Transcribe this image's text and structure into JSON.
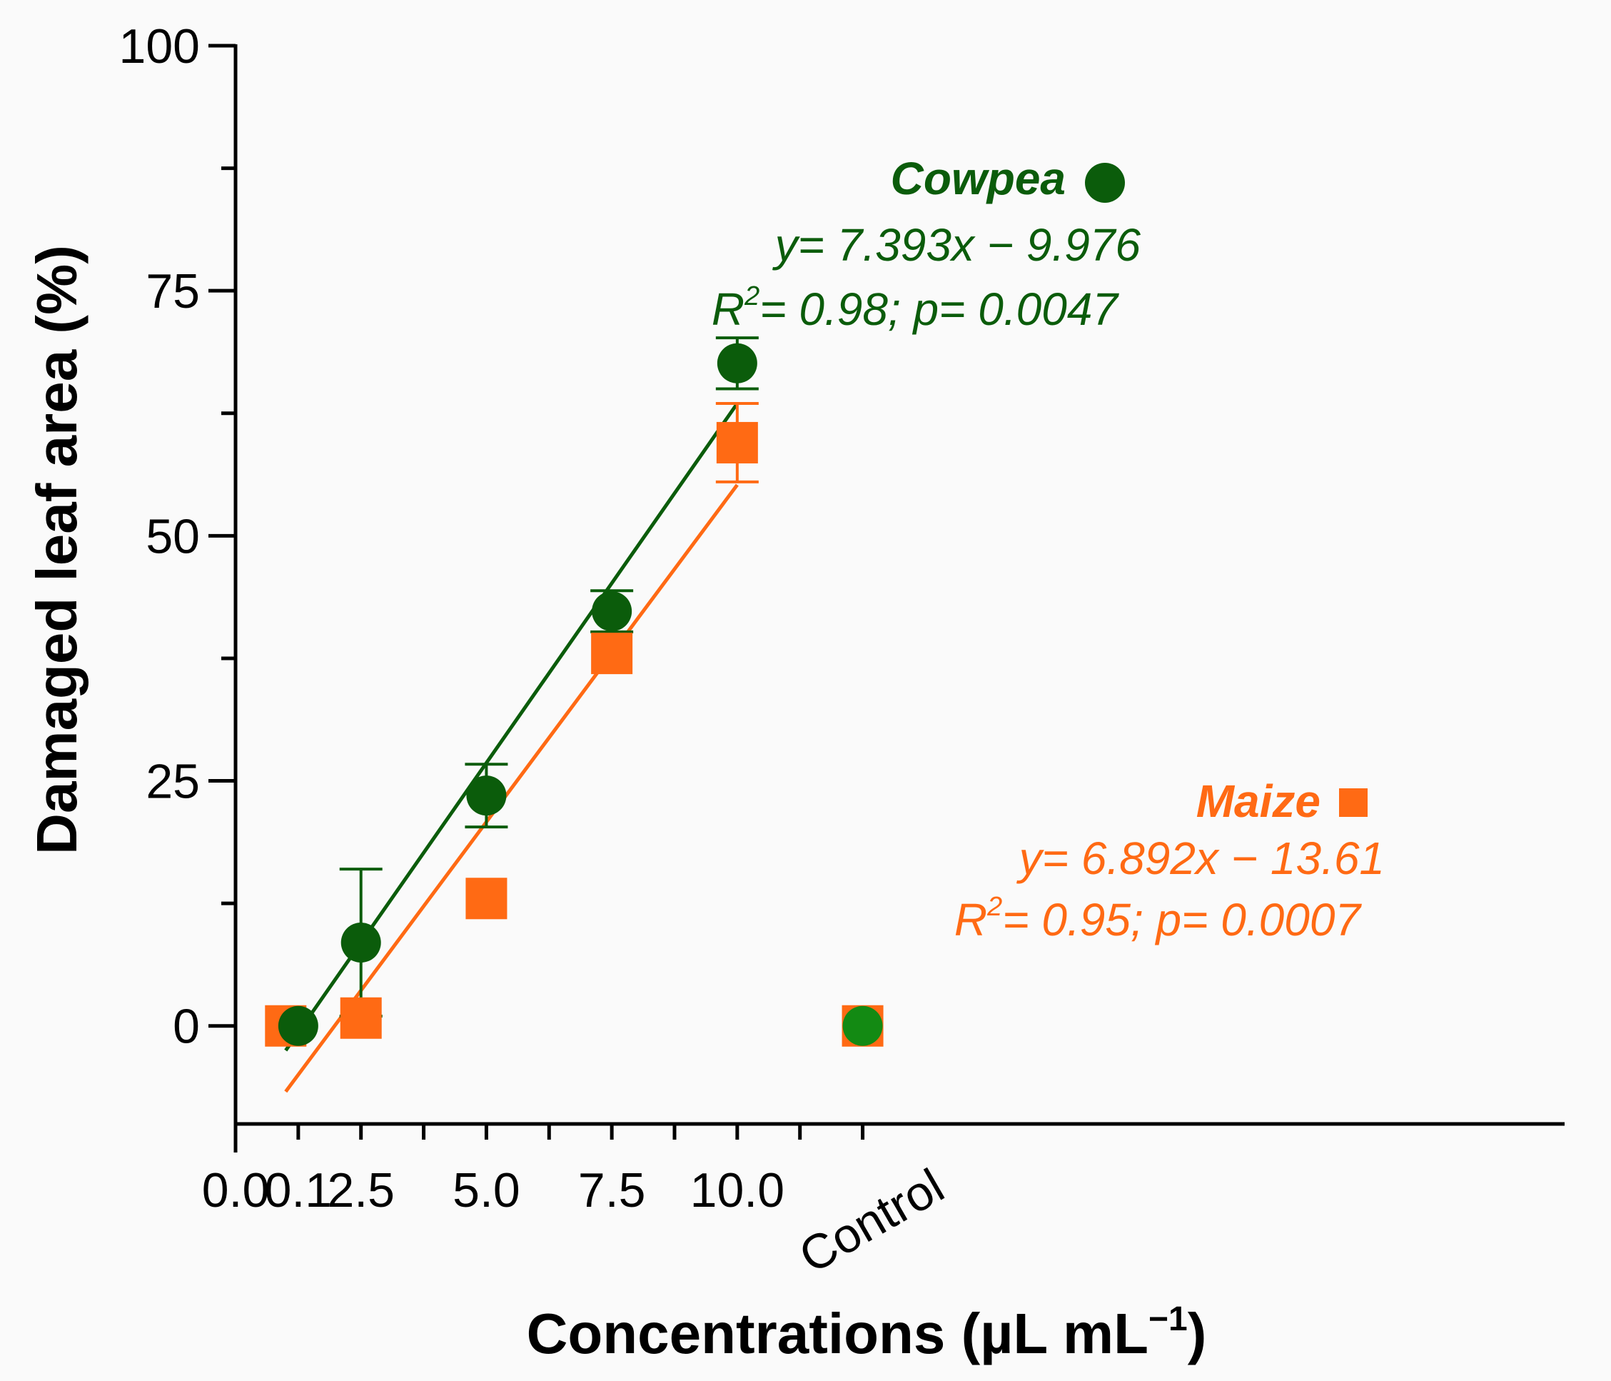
{
  "chart_data": {
    "type": "scatter",
    "title": "",
    "xlabel": "Concentrations (µL mL",
    "xlabel_sup": "−1",
    "xlabel_close": ")",
    "ylabel": "Damaged leaf area (%)",
    "xlim": [
      0,
      10.5
    ],
    "ylim": [
      -10,
      100
    ],
    "x_ticks": [
      {
        "pos": 0.0,
        "label": "0.0"
      },
      {
        "pos": 0.5,
        "label": "0.1"
      },
      {
        "pos": 1.0,
        "label": "2.5"
      },
      {
        "pos": 2.0,
        "label": "5.0"
      },
      {
        "pos": 3.0,
        "label": "7.5"
      },
      {
        "pos": 4.0,
        "label": "10.0"
      },
      {
        "pos": 5.0,
        "label": "Control"
      }
    ],
    "x_minor_ticks": [
      0.5,
      1.0,
      1.5,
      2.0,
      2.5,
      3.0,
      3.5,
      4.0,
      4.5,
      5.0
    ],
    "y_ticks": [
      {
        "value": 0,
        "label": "0"
      },
      {
        "value": 25,
        "label": "25"
      },
      {
        "value": 50,
        "label": "50"
      },
      {
        "value": 75,
        "label": "75"
      },
      {
        "value": 100,
        "label": "100"
      }
    ],
    "y_minor_ticks": [
      12.5,
      37.5,
      62.5,
      87.5
    ],
    "series": [
      {
        "name": "Cowpea",
        "marker": "circle",
        "color": "#0b5c0b",
        "points": [
          {
            "x": 0.5,
            "y": 0,
            "err": 0
          },
          {
            "x": 1.0,
            "y": 8.5,
            "err": 7.5
          },
          {
            "x": 2.0,
            "y": 23.5,
            "err": 3.2
          },
          {
            "x": 3.0,
            "y": 42.3,
            "err": 2.1
          },
          {
            "x": 4.0,
            "y": 67.6,
            "err": 2.6
          }
        ],
        "fit": {
          "x0": 0.4,
          "y0": -2.5,
          "x1": 4.0,
          "y1": 63.5
        },
        "equation": "y= 7.393x − 9.976",
        "r2_label": "R",
        "r2_sup": "2",
        "r2_rest": "= 0.98; p= 0.0047",
        "name_color": "#0b5c0b"
      },
      {
        "name": "Maize",
        "marker": "square",
        "color": "#ff6a14",
        "points": [
          {
            "x": 0.4,
            "y": 0,
            "err": 0
          },
          {
            "x": 1.0,
            "y": 0.8,
            "err": 0
          },
          {
            "x": 2.0,
            "y": 13,
            "err": 0
          },
          {
            "x": 3.0,
            "y": 38,
            "err": 0
          },
          {
            "x": 4.0,
            "y": 59.5,
            "err": 4
          }
        ],
        "fit": {
          "x0": 0.4,
          "y0": -6.7,
          "x1": 4.0,
          "y1": 55.2
        },
        "equation": "y= 6.892x − 13.61",
        "r2_label": "R",
        "r2_sup": "2",
        "r2_rest": "= 0.95; p= 0.0007",
        "name_color": "#ff6a14"
      }
    ],
    "control_points": [
      {
        "series": "Maize",
        "x": 5.0,
        "y": 0,
        "color": "#ff6a14",
        "marker": "square"
      },
      {
        "series": "Cowpea",
        "x": 5.0,
        "y": 0,
        "color": "#138a13",
        "marker": "circle"
      }
    ]
  }
}
